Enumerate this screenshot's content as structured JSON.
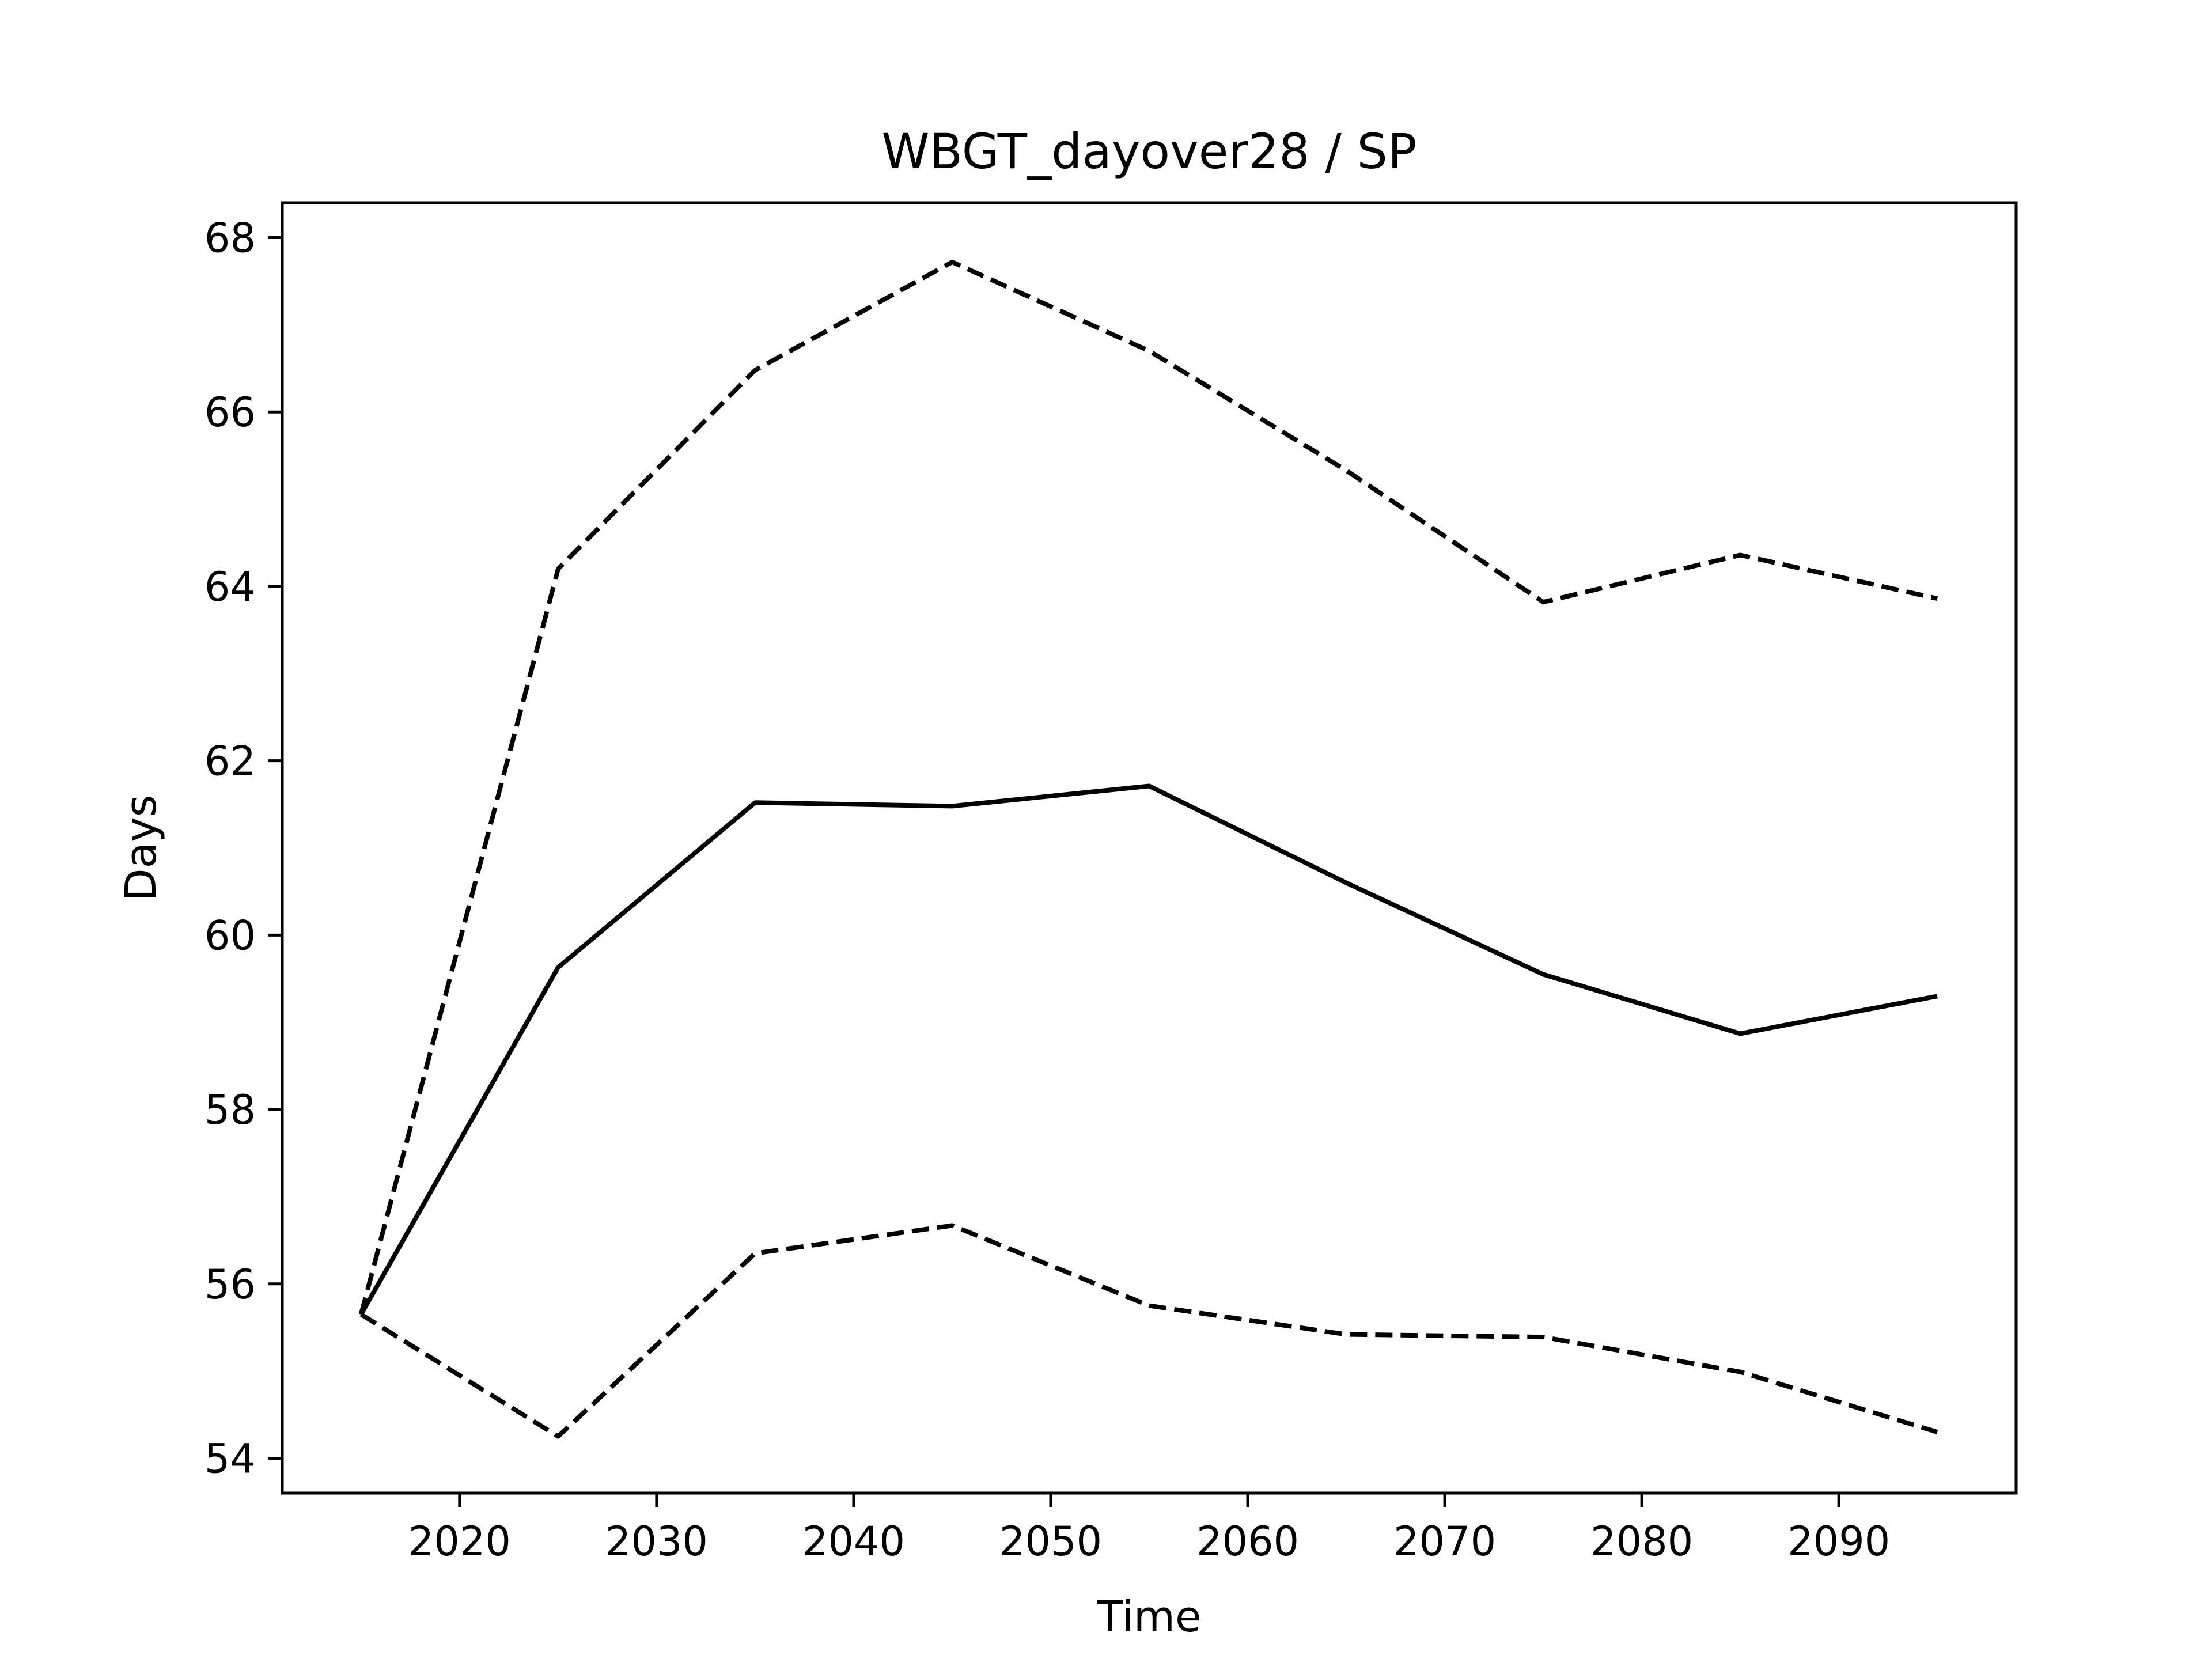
{
  "chart_data": {
    "type": "line",
    "title": "WBGT_dayover28 / SP",
    "xlabel": "Time",
    "ylabel": "Days",
    "x": [
      2015,
      2025,
      2035,
      2045,
      2055,
      2065,
      2075,
      2085,
      2095
    ],
    "xlim": [
      2011,
      2099
    ],
    "ylim": [
      53.6,
      68.4
    ],
    "x_ticks": [
      2020,
      2030,
      2040,
      2050,
      2060,
      2070,
      2080,
      2090
    ],
    "y_ticks": [
      54,
      56,
      58,
      60,
      62,
      64,
      66,
      68
    ],
    "grid": false,
    "legend": "none",
    "series": [
      {
        "style": "solid",
        "color": "#000000",
        "values": [
          55.65,
          59.63,
          61.52,
          61.48,
          61.71,
          60.6,
          59.55,
          58.87,
          59.3
        ]
      },
      {
        "style": "dashed",
        "color": "#000000",
        "values": [
          55.65,
          64.2,
          66.48,
          67.72,
          66.7,
          65.33,
          63.82,
          64.36,
          63.86
        ]
      },
      {
        "style": "dashed",
        "color": "#000000",
        "values": [
          55.65,
          54.25,
          56.35,
          56.67,
          55.75,
          55.42,
          55.39,
          54.99,
          54.3
        ]
      }
    ]
  }
}
